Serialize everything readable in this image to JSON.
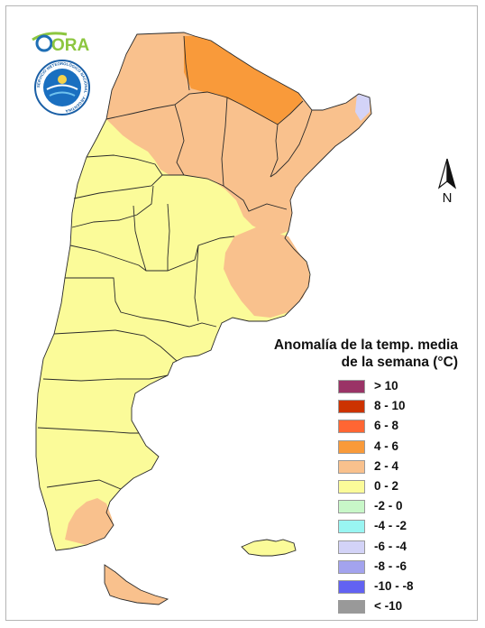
{
  "logos": {
    "ora_text": "ORA",
    "smn_text": "SERVICIO METEOROLÓGICO NACIONAL · ARGENTINA"
  },
  "north_arrow": {
    "label": "N"
  },
  "legend": {
    "title_line1": "Anomalía de la temp. media",
    "title_line2": "de la semana (°C)",
    "items": [
      {
        "label": "> 10",
        "color": "#9a3366"
      },
      {
        "label": "8 - 10",
        "color": "#cc3300"
      },
      {
        "label": "6 - 8",
        "color": "#ff6633"
      },
      {
        "label": "4 - 6",
        "color": "#f99a3a"
      },
      {
        "label": "2 - 4",
        "color": "#f9c18d"
      },
      {
        "label": "0 - 2",
        "color": "#fbfb99"
      },
      {
        "label": "-2 - 0",
        "color": "#c8f7c8"
      },
      {
        "label": "-4 - -2",
        "color": "#99f5f2"
      },
      {
        "label": "-6 - -4",
        "color": "#d3d3f7"
      },
      {
        "label": "-8 - -6",
        "color": "#a3a3ee"
      },
      {
        "label": "-10 - -8",
        "color": "#6262f2"
      },
      {
        "label": "< -10",
        "color": "#999999"
      }
    ]
  },
  "map_colors": {
    "band_0_2": "#fbfb99",
    "band_2_4": "#f9c18d",
    "band_4_6": "#f99a3a",
    "band_minus6_minus4": "#d3d3f7",
    "border": "#2a2a2a"
  }
}
